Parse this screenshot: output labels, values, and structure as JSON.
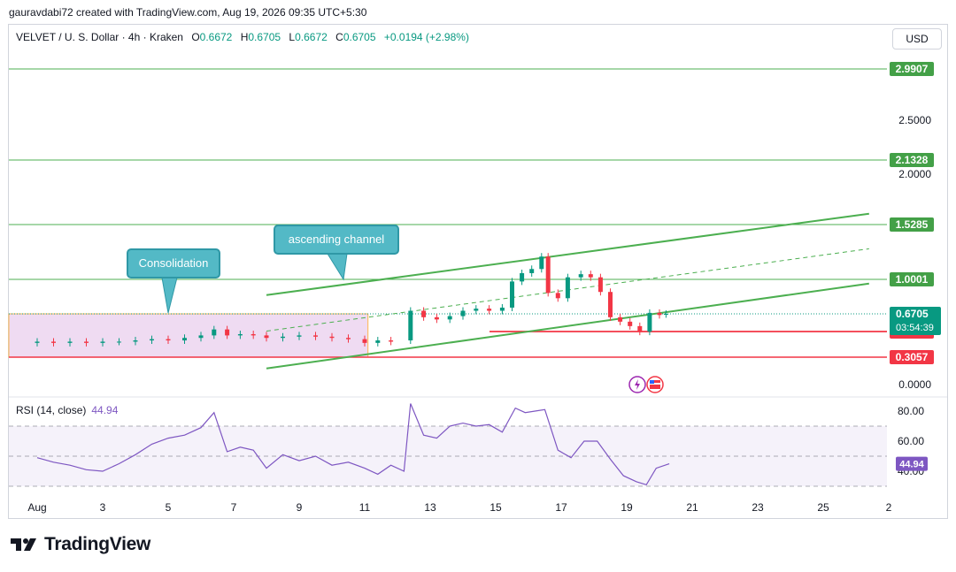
{
  "header": {
    "credit": "gauravdabi72 created with TradingView.com, Aug 19, 2026 09:35 UTC+5:30"
  },
  "legend": {
    "symbol": "VELVET / U. S. Dollar · 4h · Kraken",
    "o_label": "O",
    "o": "0.6672",
    "h_label": "H",
    "h": "0.6705",
    "l_label": "L",
    "l": "0.6672",
    "c_label": "C",
    "c": "0.6705",
    "change": "+0.0194 (+2.98%)"
  },
  "currency_button": "USD",
  "brand": {
    "name": "TradingView"
  },
  "colors": {
    "up": "#089981",
    "down": "#f23645",
    "resistance": "#4caf50",
    "support": "#f23645",
    "rsi": "#7e57c2",
    "callout": "#53b9c6"
  },
  "annotations": {
    "consolidation": "Consolidation",
    "ascending_channel": "ascending channel"
  },
  "chart_data": [
    {
      "type": "candlestick",
      "price_axis_ticks": [
        "2.5000",
        "2.0000",
        "0.0000"
      ],
      "time_axis_ticks": [
        "Aug",
        "3",
        "5",
        "7",
        "9",
        "11",
        "13",
        "15",
        "17",
        "19",
        "21",
        "23",
        "25",
        "2"
      ],
      "horizontal_levels": [
        {
          "label": "2.9907",
          "value": 2.9907,
          "color": "#4caf50"
        },
        {
          "label": "2.1328",
          "value": 2.1328,
          "color": "#4caf50"
        },
        {
          "label": "1.5285",
          "value": 1.5285,
          "color": "#4caf50"
        },
        {
          "label": "1.0001",
          "value": 1.0001,
          "color": "#4caf50"
        },
        {
          "label": "0.5111",
          "value": 0.5111,
          "color": "#f23645"
        },
        {
          "label": "0.3057",
          "value": 0.3057,
          "color": "#f23645"
        }
      ],
      "last_price": {
        "label": "0.6705",
        "value": 0.6705,
        "countdown": "03:54:39"
      },
      "consolidation_zone": {
        "day_start": 0,
        "day_end": 10.1,
        "price_low": 0.3057,
        "price_high": 0.6705
      },
      "channel": {
        "upper": {
          "day_start": 7,
          "price_start": 0.85,
          "day_end": 25.4,
          "price_end": 1.63
        },
        "lower": {
          "day_start": 7,
          "price_start": 0.18,
          "day_end": 25.4,
          "price_end": 0.96
        },
        "middle": {
          "day_start": 7,
          "price_start": 0.515,
          "day_end": 25.4,
          "price_end": 1.295
        }
      },
      "candles": [
        {
          "d": 0.0,
          "o": 0.42,
          "c": 0.43
        },
        {
          "d": 0.5,
          "o": 0.43,
          "c": 0.42
        },
        {
          "d": 1.0,
          "o": 0.42,
          "c": 0.43
        },
        {
          "d": 1.5,
          "o": 0.43,
          "c": 0.42
        },
        {
          "d": 2.0,
          "o": 0.42,
          "c": 0.43
        },
        {
          "d": 2.5,
          "o": 0.43,
          "c": 0.43
        },
        {
          "d": 3.0,
          "o": 0.43,
          "c": 0.44
        },
        {
          "d": 3.5,
          "o": 0.44,
          "c": 0.45
        },
        {
          "d": 4.0,
          "o": 0.45,
          "c": 0.44
        },
        {
          "d": 4.5,
          "o": 0.44,
          "c": 0.46
        },
        {
          "d": 5.0,
          "o": 0.46,
          "c": 0.48
        },
        {
          "d": 5.4,
          "o": 0.48,
          "c": 0.53
        },
        {
          "d": 5.8,
          "o": 0.53,
          "c": 0.48
        },
        {
          "d": 6.2,
          "o": 0.48,
          "c": 0.49
        },
        {
          "d": 6.6,
          "o": 0.49,
          "c": 0.48
        },
        {
          "d": 7.0,
          "o": 0.48,
          "c": 0.46
        },
        {
          "d": 7.5,
          "o": 0.46,
          "c": 0.47
        },
        {
          "d": 8.0,
          "o": 0.47,
          "c": 0.48
        },
        {
          "d": 8.5,
          "o": 0.48,
          "c": 0.47
        },
        {
          "d": 9.0,
          "o": 0.47,
          "c": 0.46
        },
        {
          "d": 9.5,
          "o": 0.46,
          "c": 0.45
        },
        {
          "d": 10.0,
          "o": 0.45,
          "c": 0.42
        },
        {
          "d": 10.4,
          "o": 0.42,
          "c": 0.44
        },
        {
          "d": 10.8,
          "o": 0.44,
          "c": 0.43
        },
        {
          "d": 11.4,
          "o": 0.44,
          "c": 0.7
        },
        {
          "d": 11.8,
          "o": 0.7,
          "c": 0.64
        },
        {
          "d": 12.2,
          "o": 0.64,
          "c": 0.62
        },
        {
          "d": 12.6,
          "o": 0.62,
          "c": 0.65
        },
        {
          "d": 13.0,
          "o": 0.65,
          "c": 0.7
        },
        {
          "d": 13.4,
          "o": 0.7,
          "c": 0.72
        },
        {
          "d": 13.8,
          "o": 0.72,
          "c": 0.7
        },
        {
          "d": 14.2,
          "o": 0.7,
          "c": 0.73
        },
        {
          "d": 14.5,
          "o": 0.73,
          "c": 0.98
        },
        {
          "d": 14.8,
          "o": 0.98,
          "c": 1.06
        },
        {
          "d": 15.1,
          "o": 1.06,
          "c": 1.1
        },
        {
          "d": 15.4,
          "o": 1.1,
          "c": 1.22
        },
        {
          "d": 15.6,
          "o": 1.22,
          "c": 0.87
        },
        {
          "d": 15.9,
          "o": 0.87,
          "c": 0.82
        },
        {
          "d": 16.2,
          "o": 0.82,
          "c": 1.02
        },
        {
          "d": 16.6,
          "o": 1.02,
          "c": 1.05
        },
        {
          "d": 16.9,
          "o": 1.05,
          "c": 1.02
        },
        {
          "d": 17.2,
          "o": 1.02,
          "c": 0.88
        },
        {
          "d": 17.5,
          "o": 0.88,
          "c": 0.64
        },
        {
          "d": 17.8,
          "o": 0.64,
          "c": 0.6
        },
        {
          "d": 18.1,
          "o": 0.6,
          "c": 0.56
        },
        {
          "d": 18.4,
          "o": 0.56,
          "c": 0.51
        },
        {
          "d": 18.7,
          "o": 0.51,
          "c": 0.68
        },
        {
          "d": 19.0,
          "o": 0.68,
          "c": 0.66
        },
        {
          "d": 19.2,
          "o": 0.6672,
          "c": 0.6705
        }
      ]
    },
    {
      "type": "line",
      "title": "RSI (14, close)",
      "last_value": "44.94",
      "rsi_axis_ticks": [
        "80.00",
        "60.00",
        "40.00"
      ],
      "bands": {
        "upper": 70,
        "middle": 50,
        "lower": 30
      },
      "x": [
        0,
        0.5,
        1,
        1.5,
        2,
        2.5,
        3,
        3.5,
        4,
        4.5,
        5,
        5.4,
        5.8,
        6.2,
        6.6,
        7,
        7.5,
        8,
        8.5,
        9,
        9.5,
        10,
        10.4,
        10.8,
        11.2,
        11.4,
        11.8,
        12.2,
        12.6,
        13,
        13.4,
        13.8,
        14.2,
        14.6,
        14.9,
        15.2,
        15.5,
        15.9,
        16.3,
        16.7,
        17.1,
        17.5,
        17.9,
        18.3,
        18.6,
        18.9,
        19.3
      ],
      "values": [
        49,
        46,
        44,
        41,
        40,
        45,
        51,
        58,
        62,
        64,
        69,
        79,
        53,
        56,
        54,
        42,
        51,
        47,
        50,
        44,
        46,
        42,
        38,
        44,
        40,
        85,
        64,
        62,
        70,
        72,
        70,
        71,
        66,
        82,
        79,
        80,
        81,
        54,
        49,
        60,
        60,
        48,
        37,
        33,
        31,
        42,
        44.94
      ]
    }
  ]
}
